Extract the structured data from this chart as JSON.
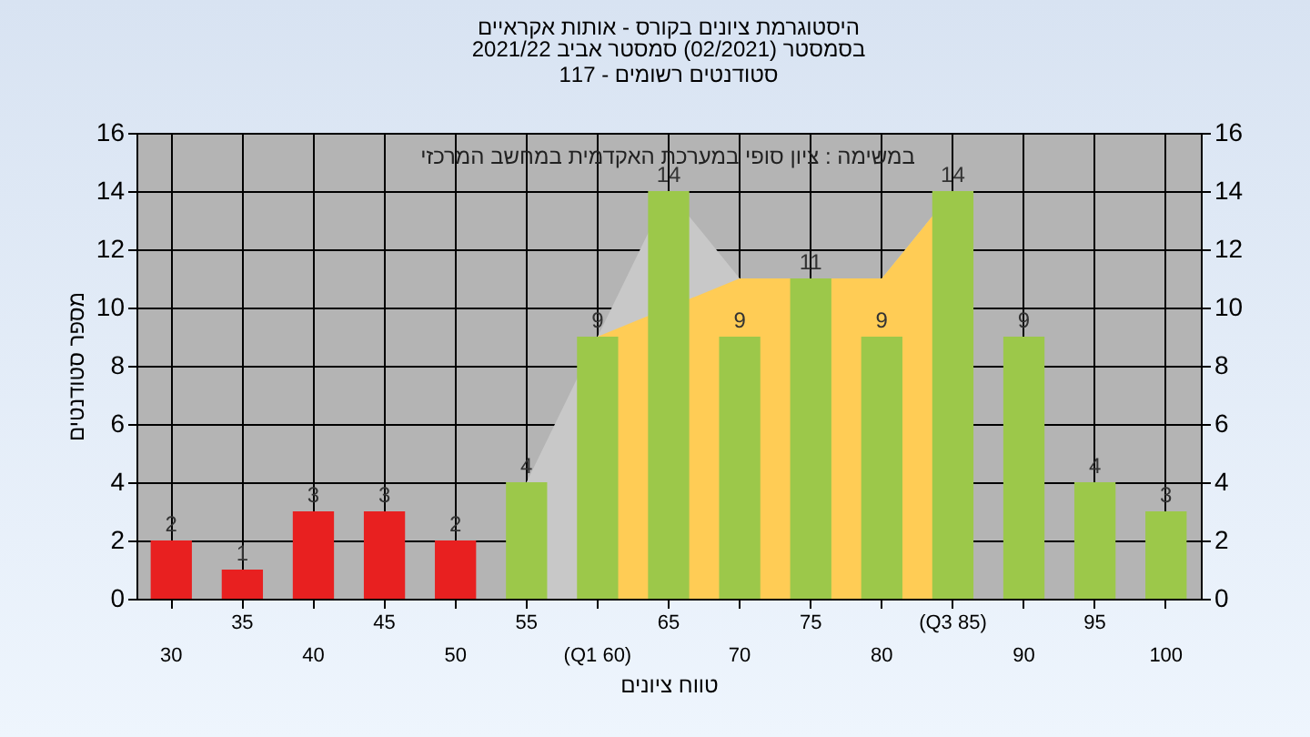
{
  "chart_data": {
    "type": "bar",
    "title": "היסטוגרמת ציונים בקורס - אותות אקראיים",
    "subtitle": "בסמסטר  (02/2021)  סמסטר אביב 2021/22\nסטודנטים רשומים - 117",
    "xlabel": "טווח ציונים",
    "ylabel": "מספר סטודנטים",
    "annotations": [
      "במשימה : ציון סופי במערכת האקדמית במחשב המרכזי"
    ],
    "categories": [
      "30",
      "35",
      "40",
      "45",
      "50",
      "55",
      "(Q1 60)",
      "65",
      "70",
      "75",
      "80",
      "(Q3 85)",
      "90",
      "95",
      "100"
    ],
    "series": [
      {
        "type": "area",
        "color": "#c8c8c8",
        "values": [
          null,
          null,
          null,
          null,
          null,
          4,
          9,
          14,
          11,
          11,
          11,
          14,
          null,
          null,
          null
        ]
      },
      {
        "type": "area",
        "color": "#ffcc55",
        "values": [
          null,
          null,
          null,
          null,
          null,
          null,
          9,
          null,
          11,
          null,
          11,
          14,
          null,
          null,
          null
        ]
      },
      {
        "value_labels": [
          "2",
          "1",
          "3",
          "3",
          "2",
          "4",
          "9",
          "14",
          "9",
          "11",
          "9",
          "14",
          "9",
          "4",
          "3"
        ],
        "colors": [
          "#e82020",
          "#e82020",
          "#e82020",
          "#e82020",
          "#e82020",
          "#9cc84a",
          "#9cc84a",
          "#9cc84a",
          "#9cc84a",
          "#9cc84a",
          "#9cc84a",
          "#9cc84a",
          "#9cc84a",
          "#9cc84a",
          "#9cc84a"
        ],
        "values": [
          2,
          1,
          3,
          3,
          2,
          4,
          9,
          14,
          9,
          11,
          9,
          14,
          9,
          4,
          3
        ]
      }
    ],
    "ylim": [
      0,
      16
    ],
    "yticks": [
      0,
      2,
      4,
      6,
      8,
      10,
      12,
      14,
      16
    ],
    "y2lim": [
      0,
      16
    ],
    "y2ticks": [
      0,
      2,
      4,
      6,
      8,
      10,
      12,
      14,
      16
    ],
    "grid": true
  }
}
